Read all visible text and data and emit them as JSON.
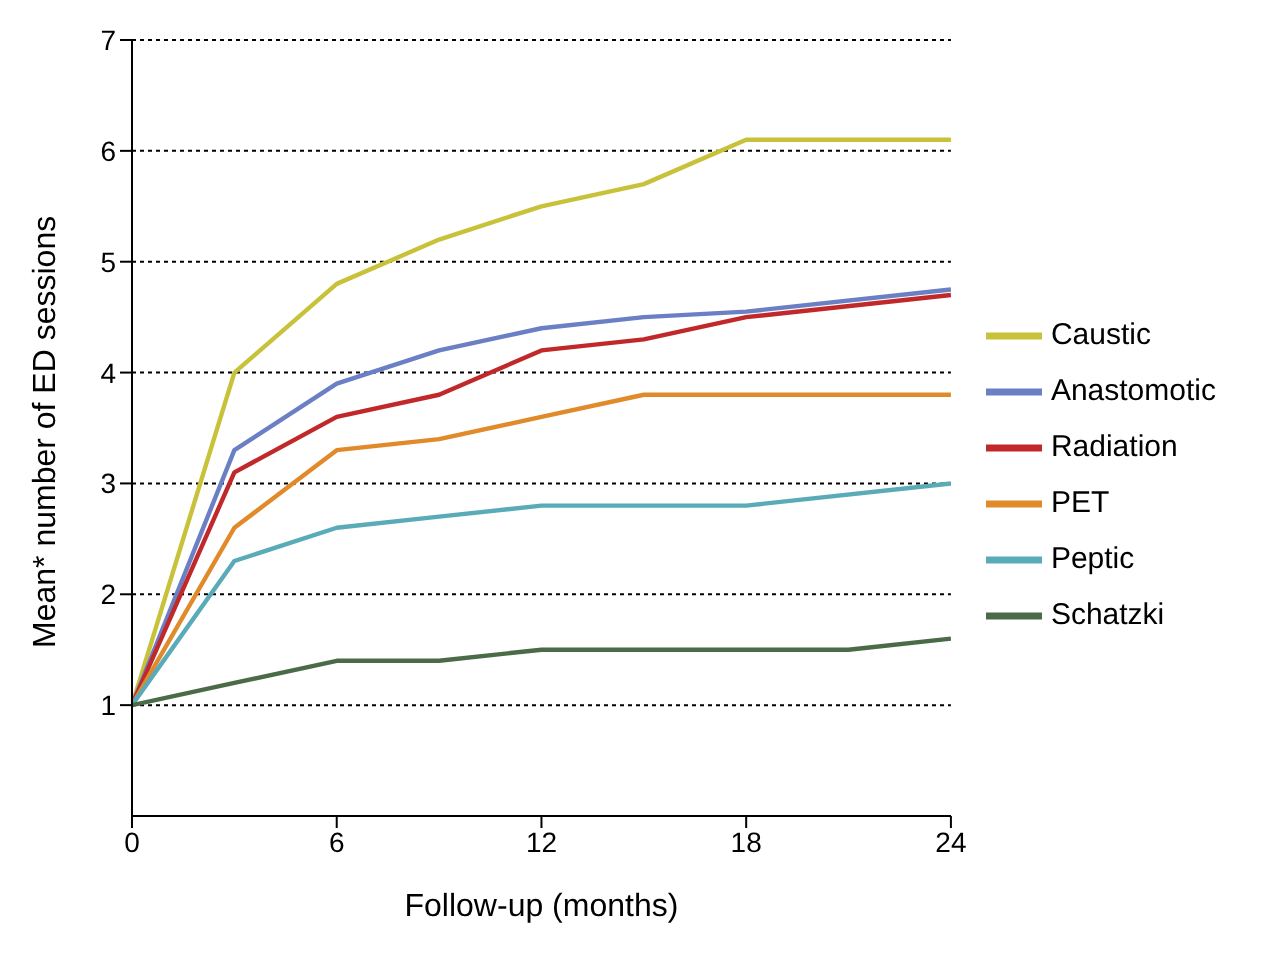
{
  "chart_data": {
    "type": "line",
    "xlabel": "Follow-up (months)",
    "ylabel": "Mean* number of ED sessions",
    "xlim": [
      0,
      24
    ],
    "xticks": [
      0,
      6,
      12,
      18,
      24
    ],
    "ylim": [
      0,
      7
    ],
    "yticks": [
      1,
      2,
      3,
      4,
      5,
      6,
      7
    ],
    "grid": "y",
    "legend": "right",
    "marker": "none",
    "line_style": "solid",
    "series": [
      {
        "name": "Caustic",
        "color": "#c8c23a",
        "x": [
          0,
          3,
          6,
          9,
          12,
          15,
          18,
          24
        ],
        "values": [
          1,
          4.0,
          4.8,
          5.2,
          5.5,
          5.7,
          6.1,
          6.1
        ]
      },
      {
        "name": "Anastomotic",
        "color": "#6a7fc4",
        "x": [
          0,
          3,
          6,
          9,
          12,
          15,
          18,
          24
        ],
        "values": [
          1,
          3.3,
          3.9,
          4.2,
          4.4,
          4.5,
          4.55,
          4.75
        ]
      },
      {
        "name": "Radiation",
        "color": "#c0282a",
        "x": [
          0,
          3,
          6,
          9,
          12,
          15,
          18,
          24
        ],
        "values": [
          1,
          3.1,
          3.6,
          3.8,
          4.2,
          4.3,
          4.5,
          4.7
        ]
      },
      {
        "name": "PET",
        "color": "#e08a2a",
        "x": [
          0,
          3,
          6,
          9,
          12,
          15,
          18,
          24
        ],
        "values": [
          1,
          2.6,
          3.3,
          3.4,
          3.6,
          3.8,
          3.8,
          3.8
        ]
      },
      {
        "name": "Peptic",
        "color": "#5aabb8",
        "x": [
          0,
          3,
          6,
          9,
          12,
          15,
          18,
          24
        ],
        "values": [
          1,
          2.3,
          2.6,
          2.7,
          2.8,
          2.8,
          2.8,
          3.0
        ]
      },
      {
        "name": "Schatzki",
        "color": "#4a6a48",
        "x": [
          0,
          3,
          6,
          9,
          12,
          15,
          18,
          21,
          24
        ],
        "values": [
          1,
          1.2,
          1.4,
          1.4,
          1.5,
          1.5,
          1.5,
          1.5,
          1.6
        ]
      }
    ]
  }
}
